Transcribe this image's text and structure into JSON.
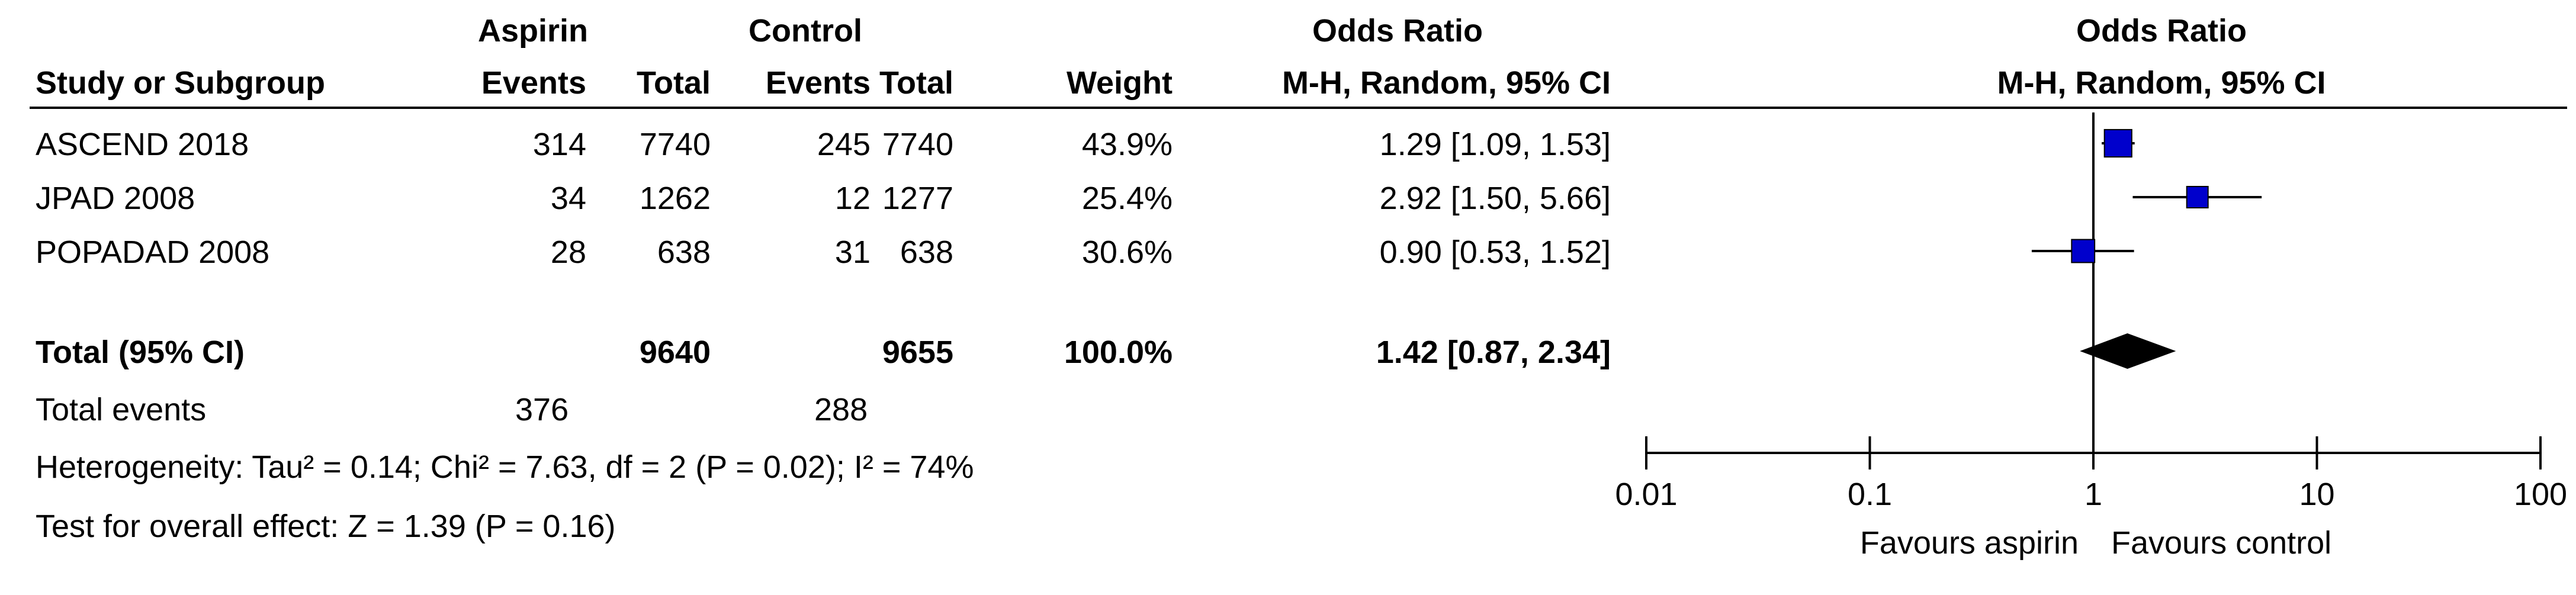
{
  "header": {
    "group1": "Aspirin",
    "group2": "Control",
    "table_effect_title": "Odds Ratio",
    "plot_effect_title": "Odds Ratio",
    "study_col": "Study or Subgroup",
    "events": "Events",
    "total": "Total",
    "weight": "Weight",
    "method": "M-H, Random, 95% CI",
    "plot_method": "M-H, Random, 95% CI"
  },
  "studies": [
    {
      "name": "ASCEND 2018",
      "e1": "314",
      "t1": "7740",
      "e2": "245",
      "t2": "7740",
      "weight": "43.9%",
      "ci_text": "1.29 [1.09, 1.53]"
    },
    {
      "name": "JPAD 2008",
      "e1": "34",
      "t1": "1262",
      "e2": "12",
      "t2": "1277",
      "weight": "25.4%",
      "ci_text": "2.92 [1.50, 5.66]"
    },
    {
      "name": "POPADAD 2008",
      "e1": "28",
      "t1": "638",
      "e2": "31",
      "t2": "638",
      "weight": "30.6%",
      "ci_text": "0.90 [0.53, 1.52]"
    }
  ],
  "total": {
    "label": "Total (95% CI)",
    "t1": "9640",
    "t2": "9655",
    "weight": "100.0%",
    "ci_text": "1.42 [0.87, 2.34]"
  },
  "events_row": {
    "label": "Total events",
    "e1": "376",
    "e2": "288"
  },
  "heterogeneity": "Heterogeneity: Tau² = 0.14; Chi² = 7.63, df = 2 (P = 0.02); I² = 74%",
  "overall_effect": "Test for overall effect: Z = 1.39 (P = 0.16)",
  "chart_data": {
    "type": "forest",
    "scale": "log",
    "xlim": [
      0.01,
      100
    ],
    "ticks": [
      "0.01",
      "0.1",
      "1",
      "10",
      "100"
    ],
    "tick_values": [
      0.01,
      0.1,
      1,
      10,
      100
    ],
    "reference_line": 1,
    "series": [
      {
        "name": "ASCEND 2018",
        "or": 1.29,
        "lower": 1.09,
        "upper": 1.53,
        "weight": 43.9
      },
      {
        "name": "JPAD 2008",
        "or": 2.92,
        "lower": 1.5,
        "upper": 5.66,
        "weight": 25.4
      },
      {
        "name": "POPADAD 2008",
        "or": 0.9,
        "lower": 0.53,
        "upper": 1.52,
        "weight": 30.6
      }
    ],
    "pooled": {
      "or": 1.42,
      "lower": 0.87,
      "upper": 2.34
    },
    "favours_left": "Favours aspirin",
    "favours_right": "Favours control",
    "marker_color": "#0000cc"
  }
}
